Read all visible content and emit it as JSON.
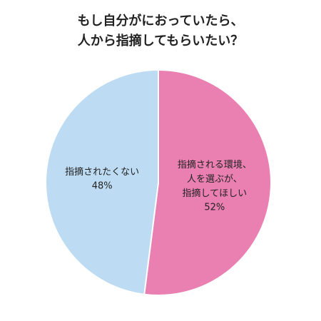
{
  "chart_data": {
    "type": "pie",
    "title": [
      "もし自分がにおっていたら、",
      "人から指摘してもらいたい？"
    ],
    "categories": [
      "指摘される環境、人を選ぶが、指摘してほしい",
      "指摘されたくない"
    ],
    "values": [
      52,
      48
    ],
    "value_labels": [
      "52%",
      "48%"
    ],
    "colors": [
      "#ea7fb1",
      "#bddcf3"
    ]
  }
}
